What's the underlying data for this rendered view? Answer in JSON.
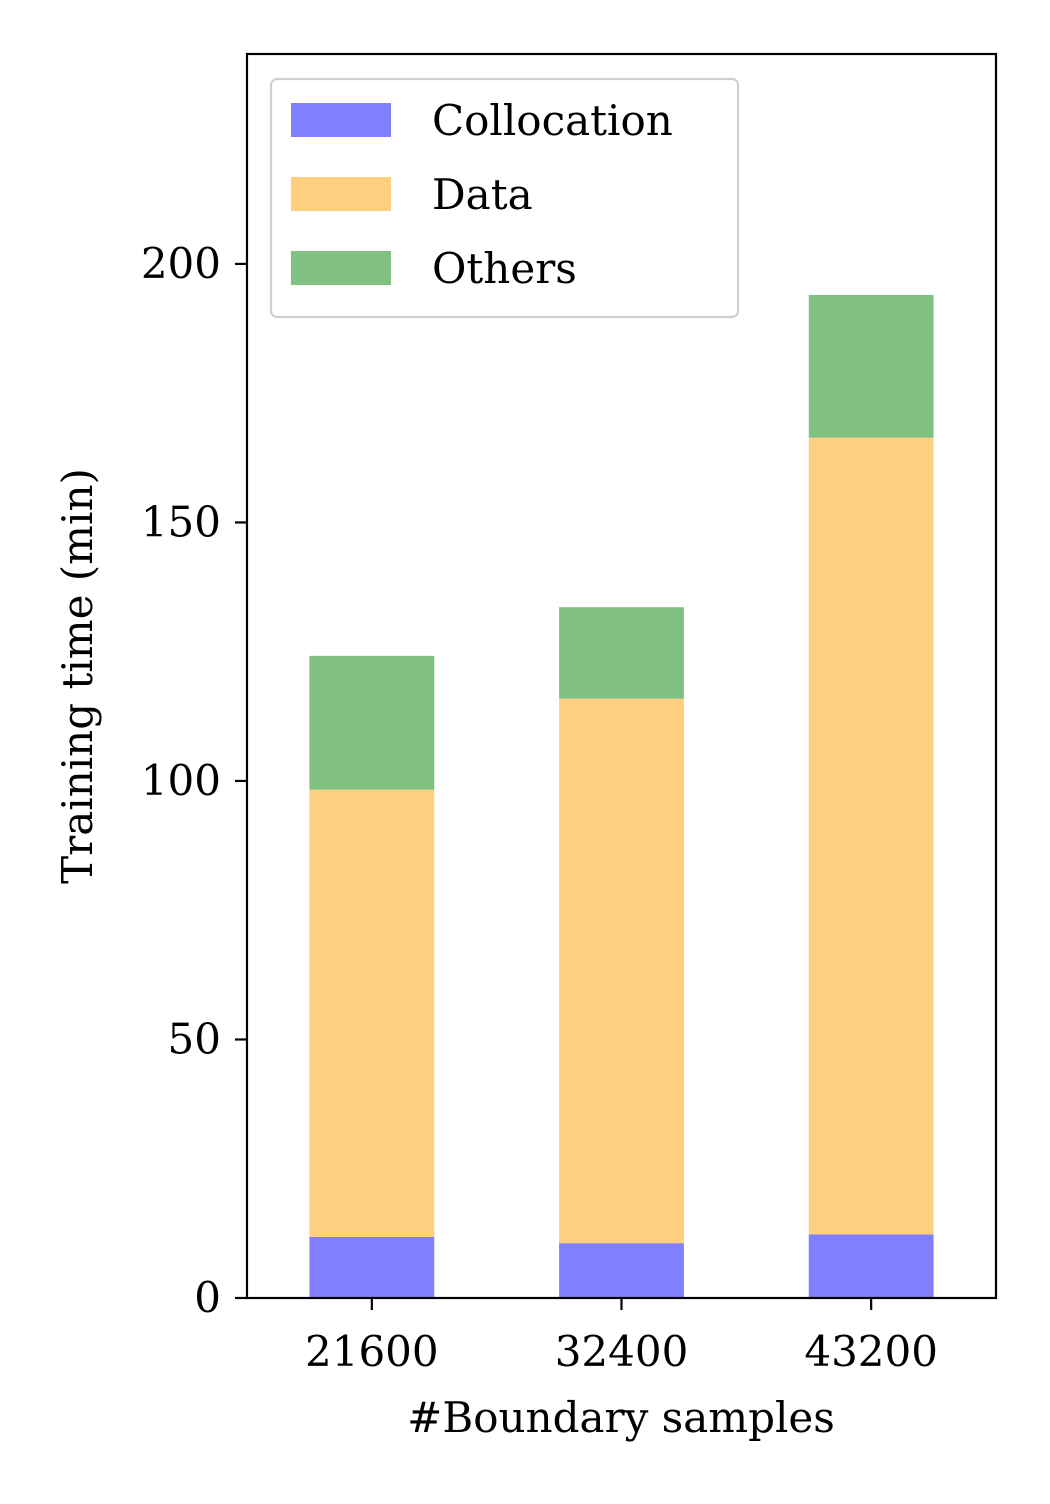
{
  "chart_data": {
    "type": "bar",
    "stacked": true,
    "categories": [
      "21600",
      "32400",
      "43200"
    ],
    "series": [
      {
        "name": "Collocation",
        "color": "#8080ff",
        "values": [
          11.8,
          10.6,
          12.3
        ]
      },
      {
        "name": "Data",
        "color": "#fecf7f",
        "values": [
          86.5,
          105.3,
          154.1
        ]
      },
      {
        "name": "Others",
        "color": "#80c080",
        "values": [
          25.9,
          17.7,
          27.6
        ]
      }
    ],
    "xlabel": "#Boundary samples",
    "ylabel": "Training time (min)",
    "ylim": [
      0,
      240.6
    ],
    "yticks": [
      0,
      50,
      100,
      150,
      200
    ],
    "grid": false,
    "legend_position": "top-left"
  }
}
